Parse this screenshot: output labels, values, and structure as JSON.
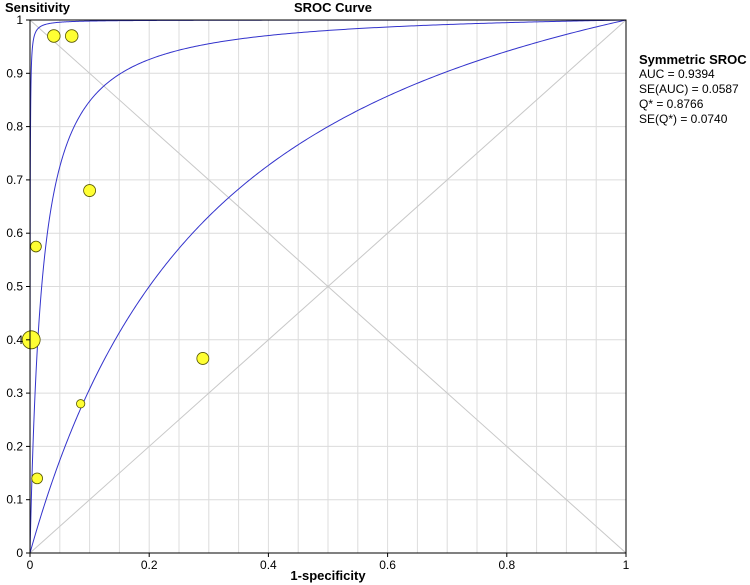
{
  "chart_data": {
    "type": "scatter",
    "title": "SROC Curve",
    "xlabel": "1-specificity",
    "ylabel": "Sensitivity",
    "xlim": [
      0,
      1
    ],
    "ylim": [
      0,
      1
    ],
    "grid": true,
    "x_ticks": [
      "0",
      "0.2",
      "0.4",
      "0.6",
      "0.8",
      "1"
    ],
    "y_ticks": [
      "0",
      "0.1",
      "0.2",
      "0.3",
      "0.4",
      "0.5",
      "0.6",
      "0.7",
      "0.8",
      "0.9",
      "1"
    ],
    "points": [
      {
        "x": 0.04,
        "y": 0.97,
        "weight": 0.55
      },
      {
        "x": 0.07,
        "y": 0.97,
        "weight": 0.55
      },
      {
        "x": 0.1,
        "y": 0.68,
        "weight": 0.5
      },
      {
        "x": 0.01,
        "y": 0.575,
        "weight": 0.4
      },
      {
        "x": 0.002,
        "y": 0.4,
        "weight": 1.0
      },
      {
        "x": 0.29,
        "y": 0.365,
        "weight": 0.5
      },
      {
        "x": 0.085,
        "y": 0.28,
        "weight": 0.2
      },
      {
        "x": 0.012,
        "y": 0.14,
        "weight": 0.4
      }
    ],
    "curves": [
      {
        "kind": "upper-ci",
        "dor": 4500
      },
      {
        "kind": "sroc",
        "dor": 50
      },
      {
        "kind": "lower-ci",
        "dor": 4.0
      }
    ],
    "point_color": "#ffff33",
    "curve_color": "#3333cc"
  },
  "summary": {
    "heading": "Symmetric SROC",
    "auc": "AUC = 0.9394",
    "se_auc": "SE(AUC) = 0.0587",
    "q": "Q* = 0.8766",
    "se_q": "SE(Q*) = 0.0740"
  }
}
